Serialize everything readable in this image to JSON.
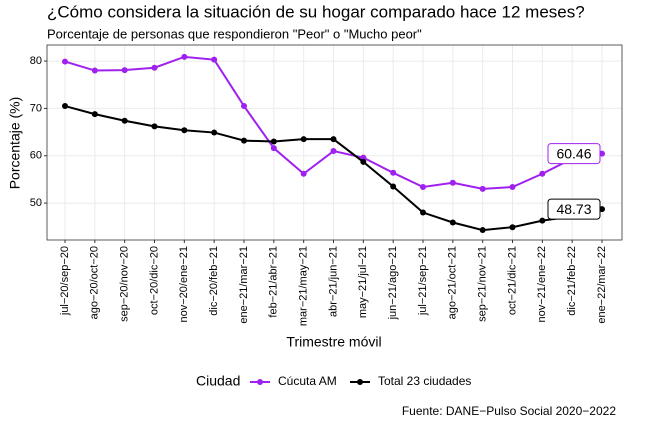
{
  "chart_data": {
    "type": "line",
    "title": "¿Cómo considera la situación de su hogar comparado hace 12 meses?",
    "subtitle": "Porcentaje de personas que respondieron \"Peor\" o \"Mucho peor\"",
    "x_label": "Trimestre móvil",
    "y_label": "Porcentaje (%)",
    "legend_title": "Ciudad",
    "caption": "Fuente: DANE−Pulso Social 2020−2022",
    "categories": [
      "jul−20/sep−20",
      "ago−20/oct−20",
      "sep−20/nov−20",
      "oct−20/dic−20",
      "nov−20/ene−21",
      "dic−20/feb−21",
      "ene−21/mar−21",
      "feb−21/abr−21",
      "mar−21/may−21",
      "abr−21/jun−21",
      "may−21/jul−21",
      "jun−21/ago−21",
      "jul−21/sep−21",
      "ago−21/oct−21",
      "sep−21/nov−21",
      "oct−21/dic−21",
      "nov−21/ene−22",
      "dic−21/feb−22",
      "ene−22/mar−22"
    ],
    "series": [
      {
        "name": "Cúcuta AM",
        "color": "#a020f0",
        "values": [
          79.9,
          78.0,
          78.1,
          78.6,
          80.9,
          80.3,
          70.5,
          61.6,
          56.2,
          61.0,
          59.6,
          56.4,
          53.4,
          54.3,
          53.0,
          53.4,
          56.2,
          59.4,
          60.46
        ]
      },
      {
        "name": "Total 23 ciudades",
        "color": "#000000",
        "values": [
          70.5,
          68.8,
          67.4,
          66.2,
          65.4,
          64.9,
          63.2,
          63.0,
          63.5,
          63.5,
          58.7,
          53.5,
          48.0,
          45.9,
          44.3,
          44.9,
          46.3,
          47.2,
          48.73
        ]
      }
    ],
    "ylim": [
      42.2,
      83.4
    ],
    "yticks": [
      50,
      60,
      70,
      80
    ],
    "grid": true,
    "legend_position": "bottom"
  }
}
